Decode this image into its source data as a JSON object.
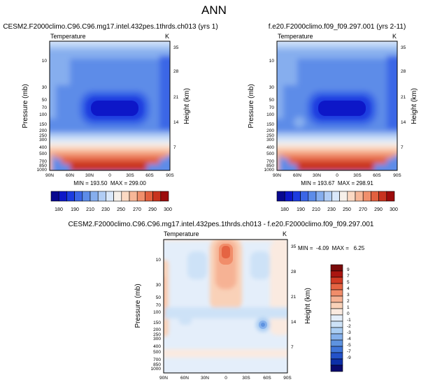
{
  "figure": {
    "title": "ANN"
  },
  "colors": {
    "levels12": [
      "#08088f",
      "#0d17c8",
      "#1c3ce0",
      "#3b66e6",
      "#5d8ce8",
      "#86aeee",
      "#b1cdf5",
      "#dae8fa",
      "#f6f0ea",
      "#fbd9c3",
      "#f7b798",
      "#f08f6c",
      "#e2603f",
      "#c8331f",
      "#9c0c0c"
    ],
    "diff": [
      "#0a0a6e",
      "#0d2fa8",
      "#2452c9",
      "#3f75d9",
      "#5e93e0",
      "#86b1ec",
      "#aacdf3",
      "#cde2f7",
      "#e4eefa",
      "#faeae0",
      "#f9d1b8",
      "#f6b294",
      "#f18d6a",
      "#e56443",
      "#d13a24",
      "#aa1510",
      "#7a0a0a"
    ]
  },
  "chart_data": [
    {
      "type": "heatmap",
      "subtitle": "CESM2.F2000climo.C96.C96.mg17.intel.432pes.1thrds.ch013 (yrs 1)",
      "variable": "Temperature",
      "units": "K",
      "ylabel": "Pressure (mb)",
      "ylabel_right": "Height (km)",
      "x_ticks": [
        "90N",
        "60N",
        "30N",
        "0",
        "30S",
        "60S",
        "90S"
      ],
      "y_ticks": [
        "10",
        "30",
        "50",
        "70",
        "100",
        "150",
        "200",
        "250",
        "300",
        "400",
        "500",
        "700",
        "850",
        "1000"
      ],
      "y_ticks_right": [
        "35",
        "28",
        "21",
        "14",
        "7"
      ],
      "stats": "MIN = 193.50  MAX = 299.00",
      "min": 193.5,
      "max": 299.0,
      "colorbar_labels": [
        "180",
        "190",
        "210",
        "230",
        "250",
        "270",
        "290",
        "300"
      ]
    },
    {
      "type": "heatmap",
      "subtitle": "f.e20.F2000climo.f09_f09.297.001 (yrs 2-11)",
      "variable": "Temperature",
      "units": "K",
      "ylabel": "Pressure (mb)",
      "ylabel_right": "Height (km)",
      "x_ticks": [
        "90N",
        "60N",
        "30N",
        "0",
        "30S",
        "60S",
        "90S"
      ],
      "y_ticks": [
        "10",
        "30",
        "50",
        "70",
        "100",
        "150",
        "200",
        "250",
        "300",
        "400",
        "500",
        "700",
        "850",
        "1000"
      ],
      "y_ticks_right": [
        "35",
        "28",
        "21",
        "14",
        "7"
      ],
      "stats": "MIN = 193.67  MAX = 298.91",
      "min": 193.67,
      "max": 298.91,
      "colorbar_labels": [
        "180",
        "190",
        "210",
        "230",
        "250",
        "270",
        "290",
        "300"
      ]
    },
    {
      "type": "heatmap",
      "subtitle": "CESM2.F2000climo.C96.C96.mg17.intel.432pes.1thrds.ch013 - f.e20.F2000climo.f09_f09.297.001",
      "variable": "Temperature",
      "units": "K",
      "ylabel": "Pressure (mb)",
      "ylabel_right": "Height (km)",
      "x_ticks": [
        "90N",
        "60N",
        "30N",
        "0",
        "30S",
        "60S",
        "90S"
      ],
      "y_ticks": [
        "10",
        "30",
        "50",
        "70",
        "100",
        "150",
        "200",
        "250",
        "300",
        "400",
        "500",
        "700",
        "850",
        "1000"
      ],
      "y_ticks_right": [
        "35",
        "28",
        "21",
        "14",
        "7"
      ],
      "stats": "MIN =  -4.09  MAX =   6.25",
      "min": -4.09,
      "max": 6.25,
      "colorbar_labels": [
        "9",
        "7",
        "5",
        "4",
        "3",
        "2",
        "1",
        "0",
        "-1",
        "-2",
        "-3",
        "-4",
        "-5",
        "-7",
        "-9"
      ]
    }
  ]
}
